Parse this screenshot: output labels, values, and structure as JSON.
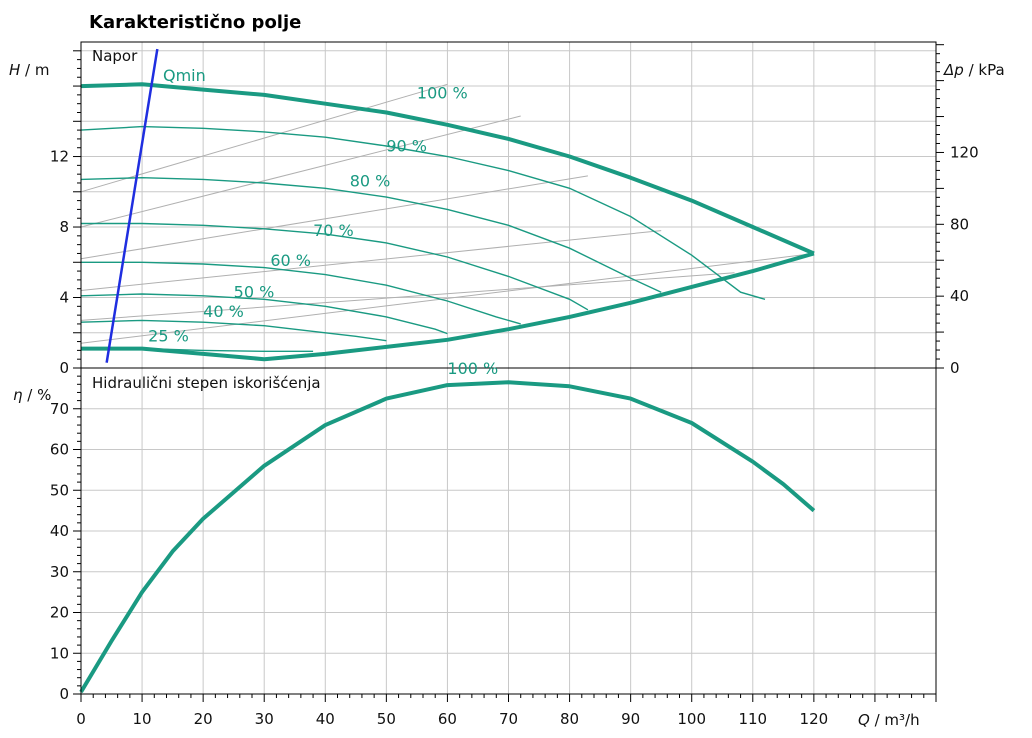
{
  "chart_data": {
    "type": "line",
    "title": "Karakteristično polje",
    "colors": {
      "curve": "#1a9a82",
      "qmin": "#1f2ee0",
      "grid": "#c8c8c8",
      "system": "#b0b0b0",
      "axis": "#000000"
    },
    "x_axis": {
      "label": "Q / m³/h",
      "label_var": "Q",
      "label_unit": " / m³/h",
      "range": [
        0,
        140
      ],
      "ticks": [
        0,
        10,
        20,
        30,
        40,
        50,
        60,
        70,
        80,
        90,
        100,
        110,
        120
      ]
    },
    "top_panel": {
      "title": "Napor",
      "y_left": {
        "label_var": "H",
        "label_unit": " / m",
        "range": [
          0,
          18.5
        ],
        "ticks": [
          0,
          4,
          8,
          12
        ]
      },
      "y_right": {
        "label_var": "Δp",
        "label_unit": " / kPa",
        "range": [
          0,
          181.5
        ],
        "ticks": [
          0,
          40,
          80,
          120
        ]
      },
      "qmin": {
        "label": "Qmin",
        "points": [
          [
            4.2,
            0.3
          ],
          [
            12.5,
            18.1
          ]
        ]
      },
      "envelope": {
        "max_curve": [
          [
            0,
            16.0
          ],
          [
            10,
            16.1
          ],
          [
            20,
            15.8
          ],
          [
            30,
            15.5
          ],
          [
            40,
            15.0
          ],
          [
            50,
            14.5
          ],
          [
            60,
            13.8
          ],
          [
            70,
            13.0
          ],
          [
            80,
            12.0
          ],
          [
            90,
            10.8
          ],
          [
            100,
            9.5
          ],
          [
            110,
            8.0
          ],
          [
            120,
            6.5
          ]
        ],
        "min_curve": [
          [
            0,
            1.1
          ],
          [
            10,
            1.1
          ],
          [
            20,
            0.8
          ],
          [
            30,
            0.5
          ],
          [
            40,
            0.8
          ],
          [
            50,
            1.2
          ],
          [
            60,
            1.6
          ],
          [
            70,
            2.2
          ],
          [
            80,
            2.9
          ],
          [
            90,
            3.7
          ],
          [
            100,
            4.6
          ],
          [
            110,
            5.5
          ],
          [
            120,
            6.5
          ]
        ]
      },
      "speed_curves": [
        {
          "label": "90 %",
          "label_at": [
            50,
            12.3
          ],
          "points": [
            [
              0,
              13.5
            ],
            [
              10,
              13.7
            ],
            [
              20,
              13.6
            ],
            [
              30,
              13.4
            ],
            [
              40,
              13.1
            ],
            [
              50,
              12.6
            ],
            [
              60,
              12.0
            ],
            [
              70,
              11.2
            ],
            [
              80,
              10.2
            ],
            [
              90,
              8.6
            ],
            [
              100,
              6.4
            ],
            [
              108,
              4.3
            ],
            [
              112,
              3.9
            ]
          ]
        },
        {
          "label": "80 %",
          "label_at": [
            44,
            10.3
          ],
          "points": [
            [
              0,
              10.7
            ],
            [
              10,
              10.8
            ],
            [
              20,
              10.7
            ],
            [
              30,
              10.5
            ],
            [
              40,
              10.2
            ],
            [
              50,
              9.7
            ],
            [
              60,
              9.0
            ],
            [
              70,
              8.1
            ],
            [
              80,
              6.8
            ],
            [
              90,
              5.1
            ],
            [
              95,
              4.3
            ]
          ]
        },
        {
          "label": "70 %",
          "label_at": [
            38,
            7.5
          ],
          "points": [
            [
              0,
              8.2
            ],
            [
              10,
              8.2
            ],
            [
              20,
              8.1
            ],
            [
              30,
              7.9
            ],
            [
              40,
              7.6
            ],
            [
              50,
              7.1
            ],
            [
              60,
              6.3
            ],
            [
              70,
              5.2
            ],
            [
              80,
              3.9
            ],
            [
              83,
              3.3
            ]
          ]
        },
        {
          "label": "60 %",
          "label_at": [
            31,
            5.8
          ],
          "points": [
            [
              0,
              6.0
            ],
            [
              10,
              6.0
            ],
            [
              20,
              5.9
            ],
            [
              30,
              5.7
            ],
            [
              40,
              5.3
            ],
            [
              50,
              4.7
            ],
            [
              60,
              3.8
            ],
            [
              68,
              2.9
            ],
            [
              72,
              2.5
            ]
          ]
        },
        {
          "label": "50 %",
          "label_at": [
            25,
            4.0
          ],
          "points": [
            [
              0,
              4.1
            ],
            [
              10,
              4.2
            ],
            [
              20,
              4.1
            ],
            [
              30,
              3.9
            ],
            [
              40,
              3.5
            ],
            [
              50,
              2.9
            ],
            [
              58,
              2.2
            ],
            [
              60,
              1.95
            ]
          ]
        },
        {
          "label": "40 %",
          "label_at": [
            20,
            2.9
          ],
          "points": [
            [
              0,
              2.6
            ],
            [
              10,
              2.7
            ],
            [
              20,
              2.6
            ],
            [
              30,
              2.4
            ],
            [
              40,
              2.0
            ],
            [
              45,
              1.8
            ],
            [
              50,
              1.55
            ]
          ]
        },
        {
          "label": "25 %",
          "label_at": [
            11,
            1.5
          ],
          "points": [
            [
              0,
              1.1
            ],
            [
              10,
              1.1
            ],
            [
              20,
              1.0
            ],
            [
              30,
              0.95
            ],
            [
              38,
              0.95
            ]
          ]
        }
      ],
      "envelope_labels": [
        {
          "label": "100 %",
          "label_at": [
            55,
            15.3
          ]
        }
      ],
      "system_curves": [
        [
          [
            0,
            1.4
          ],
          [
            120,
            6.5
          ]
        ],
        [
          [
            0,
            2.7
          ],
          [
            107,
            5.4
          ]
        ],
        [
          [
            0,
            4.4
          ],
          [
            95,
            7.8
          ]
        ],
        [
          [
            0,
            6.2
          ],
          [
            83,
            10.9
          ]
        ],
        [
          [
            0,
            8.0
          ],
          [
            72,
            14.3
          ]
        ],
        [
          [
            0,
            10.0
          ],
          [
            60,
            16.1
          ]
        ]
      ]
    },
    "bottom_panel": {
      "title": "Hidraulični stepen iskorišćenja",
      "y_left": {
        "label_var": "η",
        "label_unit": " / %",
        "range": [
          0,
          80
        ],
        "ticks": [
          0,
          10,
          20,
          30,
          40,
          50,
          60,
          70
        ]
      },
      "series": [
        {
          "label": "100 %",
          "label_at": [
            60,
            78.5
          ],
          "points": [
            [
              0,
              0.5
            ],
            [
              5,
              13
            ],
            [
              10,
              25
            ],
            [
              15,
              35
            ],
            [
              20,
              43
            ],
            [
              30,
              56
            ],
            [
              40,
              66
            ],
            [
              50,
              72.5
            ],
            [
              60,
              75.8
            ],
            [
              70,
              76.5
            ],
            [
              80,
              75.5
            ],
            [
              90,
              72.5
            ],
            [
              100,
              66.5
            ],
            [
              110,
              57
            ],
            [
              115,
              51.5
            ],
            [
              120,
              45
            ]
          ]
        }
      ]
    }
  }
}
